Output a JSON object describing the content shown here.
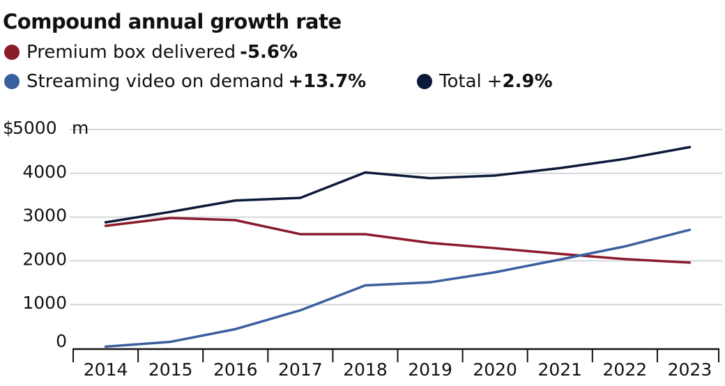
{
  "chart_data": {
    "type": "line",
    "title": "Compound annual growth rate",
    "ylabel_unit_prefix": "$",
    "ylabel_unit_suffix": "m",
    "x": [
      "2014",
      "2015",
      "2016",
      "2017",
      "2018",
      "2019",
      "2020",
      "2021",
      "2022",
      "2023"
    ],
    "ylim": [
      0,
      5000
    ],
    "yticks": [
      "5000",
      "4000",
      "3000",
      "2000",
      "1000",
      "0"
    ],
    "grid": true,
    "legend_position": "top-left",
    "series": [
      {
        "name": "Premium box delivered",
        "growth": "-5.6%",
        "color": "#8b1a2b",
        "values": [
          2800,
          2980,
          2930,
          2610,
          2610,
          2410,
          2290,
          2160,
          2040,
          1960
        ]
      },
      {
        "name": "Streaming video on demand",
        "growth": "+13.7%",
        "color": "#3a5f9e",
        "values": [
          40,
          150,
          440,
          870,
          1440,
          1510,
          1740,
          2030,
          2330,
          2710
        ]
      },
      {
        "name": "Total",
        "growth_sign": "+",
        "growth": "2.9%",
        "color": "#0c1a3a",
        "values": [
          2880,
          3120,
          3380,
          3440,
          4020,
          3890,
          3950,
          4120,
          4330,
          4600
        ]
      }
    ]
  }
}
